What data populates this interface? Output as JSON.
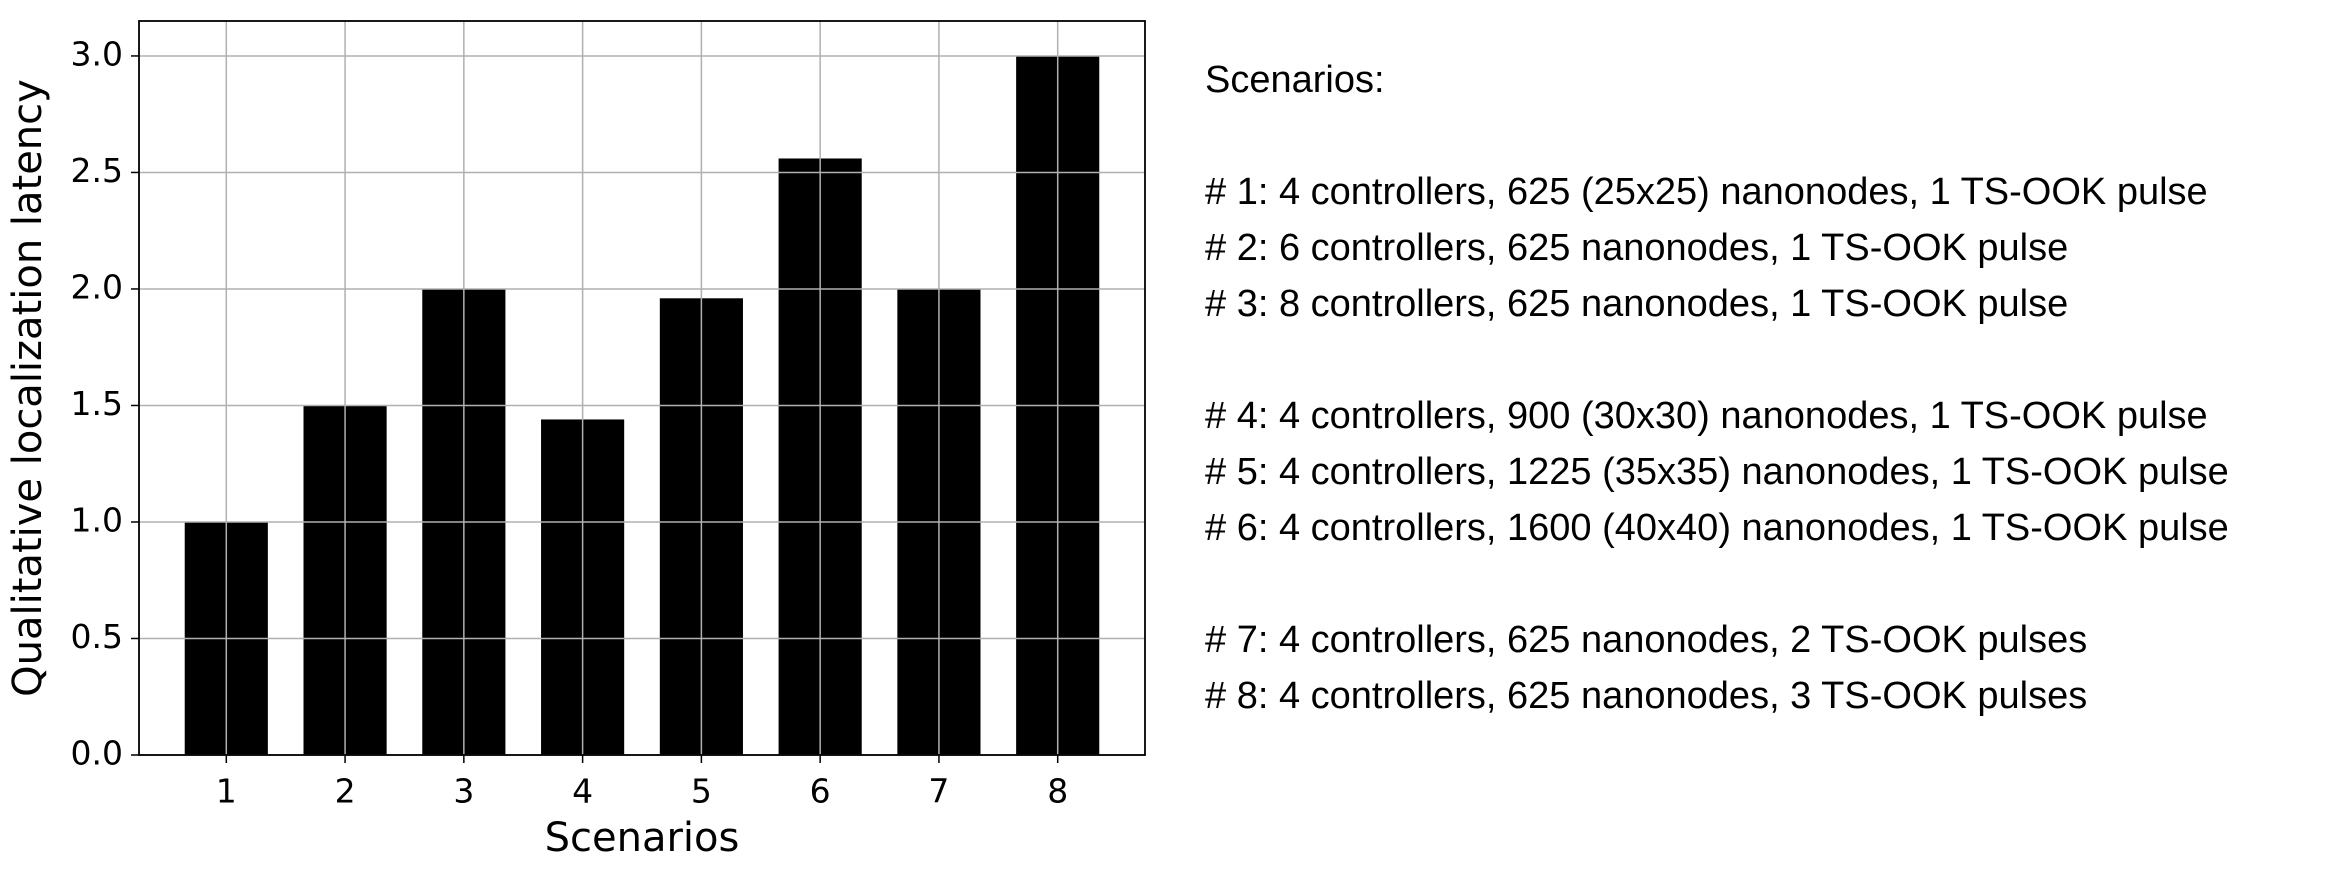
{
  "chart_data": {
    "type": "bar",
    "x": [
      1,
      2,
      3,
      4,
      5,
      6,
      7,
      8
    ],
    "values": [
      1.0,
      1.5,
      2.0,
      1.44,
      1.96,
      2.56,
      2.0,
      3.0
    ],
    "color": "#000000",
    "xlabel": "Scenarios",
    "ylabel": "Qualitative localization latency",
    "xlim": [
      0.265,
      8.735
    ],
    "xticks": [
      1,
      2,
      3,
      4,
      5,
      6,
      7,
      8
    ],
    "ylim": [
      0,
      3.15
    ],
    "yticks": [
      {
        "value": 0,
        "label": "0.0"
      },
      {
        "value": 0.5,
        "label": "0.5"
      },
      {
        "value": 1,
        "label": "1.0"
      },
      {
        "value": 1.5,
        "label": "1.5"
      },
      {
        "value": 2,
        "label": "2.0"
      },
      {
        "value": 2.5,
        "label": "2.5"
      },
      {
        "value": 3,
        "label": "3.0"
      }
    ],
    "grid": true,
    "legend_title": "Scenarios:",
    "annotations": [
      [
        "# 1: 4 controllers, 625 (25x25) nanonodes, 1 TS-OOK pulse",
        "# 2: 6 controllers, 625 nanonodes, 1 TS-OOK pulse",
        "# 3: 8 controllers, 625 nanonodes, 1 TS-OOK pulse"
      ],
      [
        "# 4: 4 controllers, 900 (30x30) nanonodes, 1 TS-OOK pulse",
        "# 5: 4 controllers, 1225 (35x35) nanonodes, 1 TS-OOK pulse",
        "# 6: 4 controllers, 1600 (40x40) nanonodes, 1 TS-OOK pulse"
      ],
      [
        "# 7: 4 controllers, 625 nanonodes, 2 TS-OOK pulses",
        "# 8: 4 controllers, 625 nanonodes, 3 TS-OOK pulses"
      ]
    ]
  }
}
